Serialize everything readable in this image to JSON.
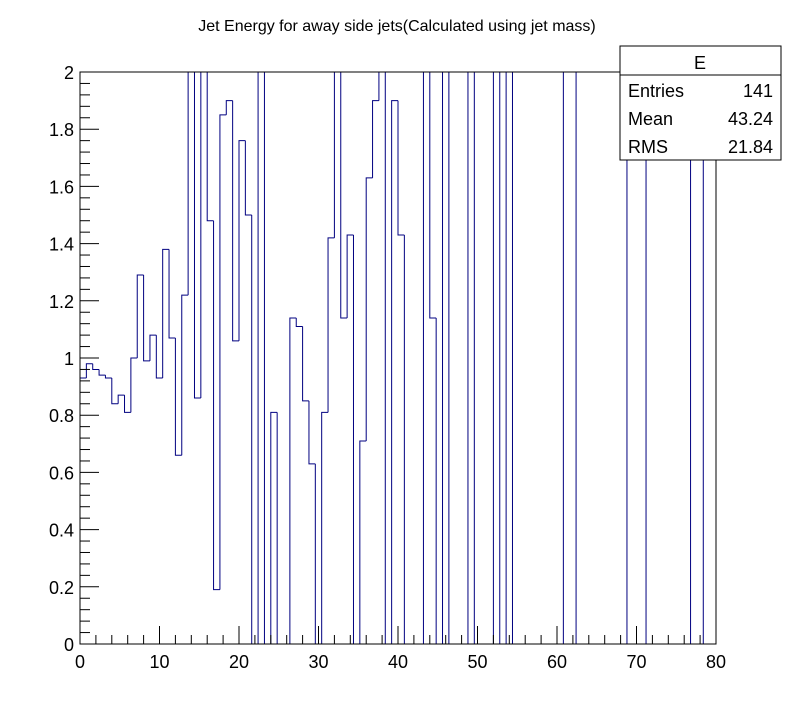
{
  "chart_data": {
    "type": "bar",
    "style": "step-histogram",
    "title": "Jet Energy for away side jets(Calculated using jet mass)",
    "xlabel": "",
    "ylabel": "",
    "xlim": [
      0,
      80
    ],
    "ylim": [
      0,
      2
    ],
    "grid": false,
    "line_color": "#000080",
    "bin_width": 0.8,
    "bin_edges_start": 0,
    "values": [
      0.93,
      0.98,
      0.96,
      0.94,
      0.93,
      0.84,
      0.87,
      0.81,
      1.0,
      1.29,
      0.99,
      1.08,
      0.93,
      1.38,
      1.07,
      0.66,
      1.22,
      2.0,
      0.86,
      2.0,
      1.48,
      0.19,
      1.85,
      1.9,
      1.06,
      1.76,
      1.5,
      0.0,
      2.0,
      0.0,
      0.81,
      0.0,
      0.0,
      1.14,
      1.11,
      0.85,
      0.63,
      0.0,
      0.81,
      1.42,
      2.0,
      1.14,
      1.43,
      0.0,
      0.71,
      1.63,
      1.9,
      2.0,
      0.0,
      1.9,
      1.43,
      0.0,
      0.0,
      0.0,
      2.0,
      1.14,
      0.0,
      2.0,
      0.0,
      0.0,
      0.0,
      2.0,
      0.0,
      0.0,
      0.0,
      2.0,
      0.0,
      2.0,
      0.0,
      0.0,
      0.0,
      0.0,
      0.0,
      0.0,
      0.0,
      0.0,
      2.0,
      2.0,
      0.0,
      0.0,
      0.0,
      0.0,
      0.0,
      0.0,
      0.0,
      0.0,
      2.0,
      2.0,
      2.0,
      0.0,
      0.0,
      0.0,
      0.0,
      0.0,
      0.0,
      0.0,
      2.0,
      2.0,
      0.0,
      0.0
    ],
    "x_ticks": [
      0,
      10,
      20,
      30,
      40,
      50,
      60,
      70,
      80
    ],
    "x_tick_labels": [
      "0",
      "10",
      "20",
      "30",
      "40",
      "50",
      "60",
      "70",
      "80"
    ],
    "y_ticks": [
      0,
      0.2,
      0.4,
      0.6,
      0.8,
      1.0,
      1.2,
      1.4,
      1.6,
      1.8,
      2.0
    ],
    "y_tick_labels": [
      "0",
      "0.2",
      "0.4",
      "0.6",
      "0.8",
      "1",
      "1.2",
      "1.4",
      "1.6",
      "1.8",
      "2"
    ],
    "stats_box": {
      "name": "E",
      "rows": [
        {
          "label": "Entries",
          "value": "141"
        },
        {
          "label": "Mean",
          "value": "43.24"
        },
        {
          "label": "RMS",
          "value": "21.84"
        }
      ]
    }
  }
}
